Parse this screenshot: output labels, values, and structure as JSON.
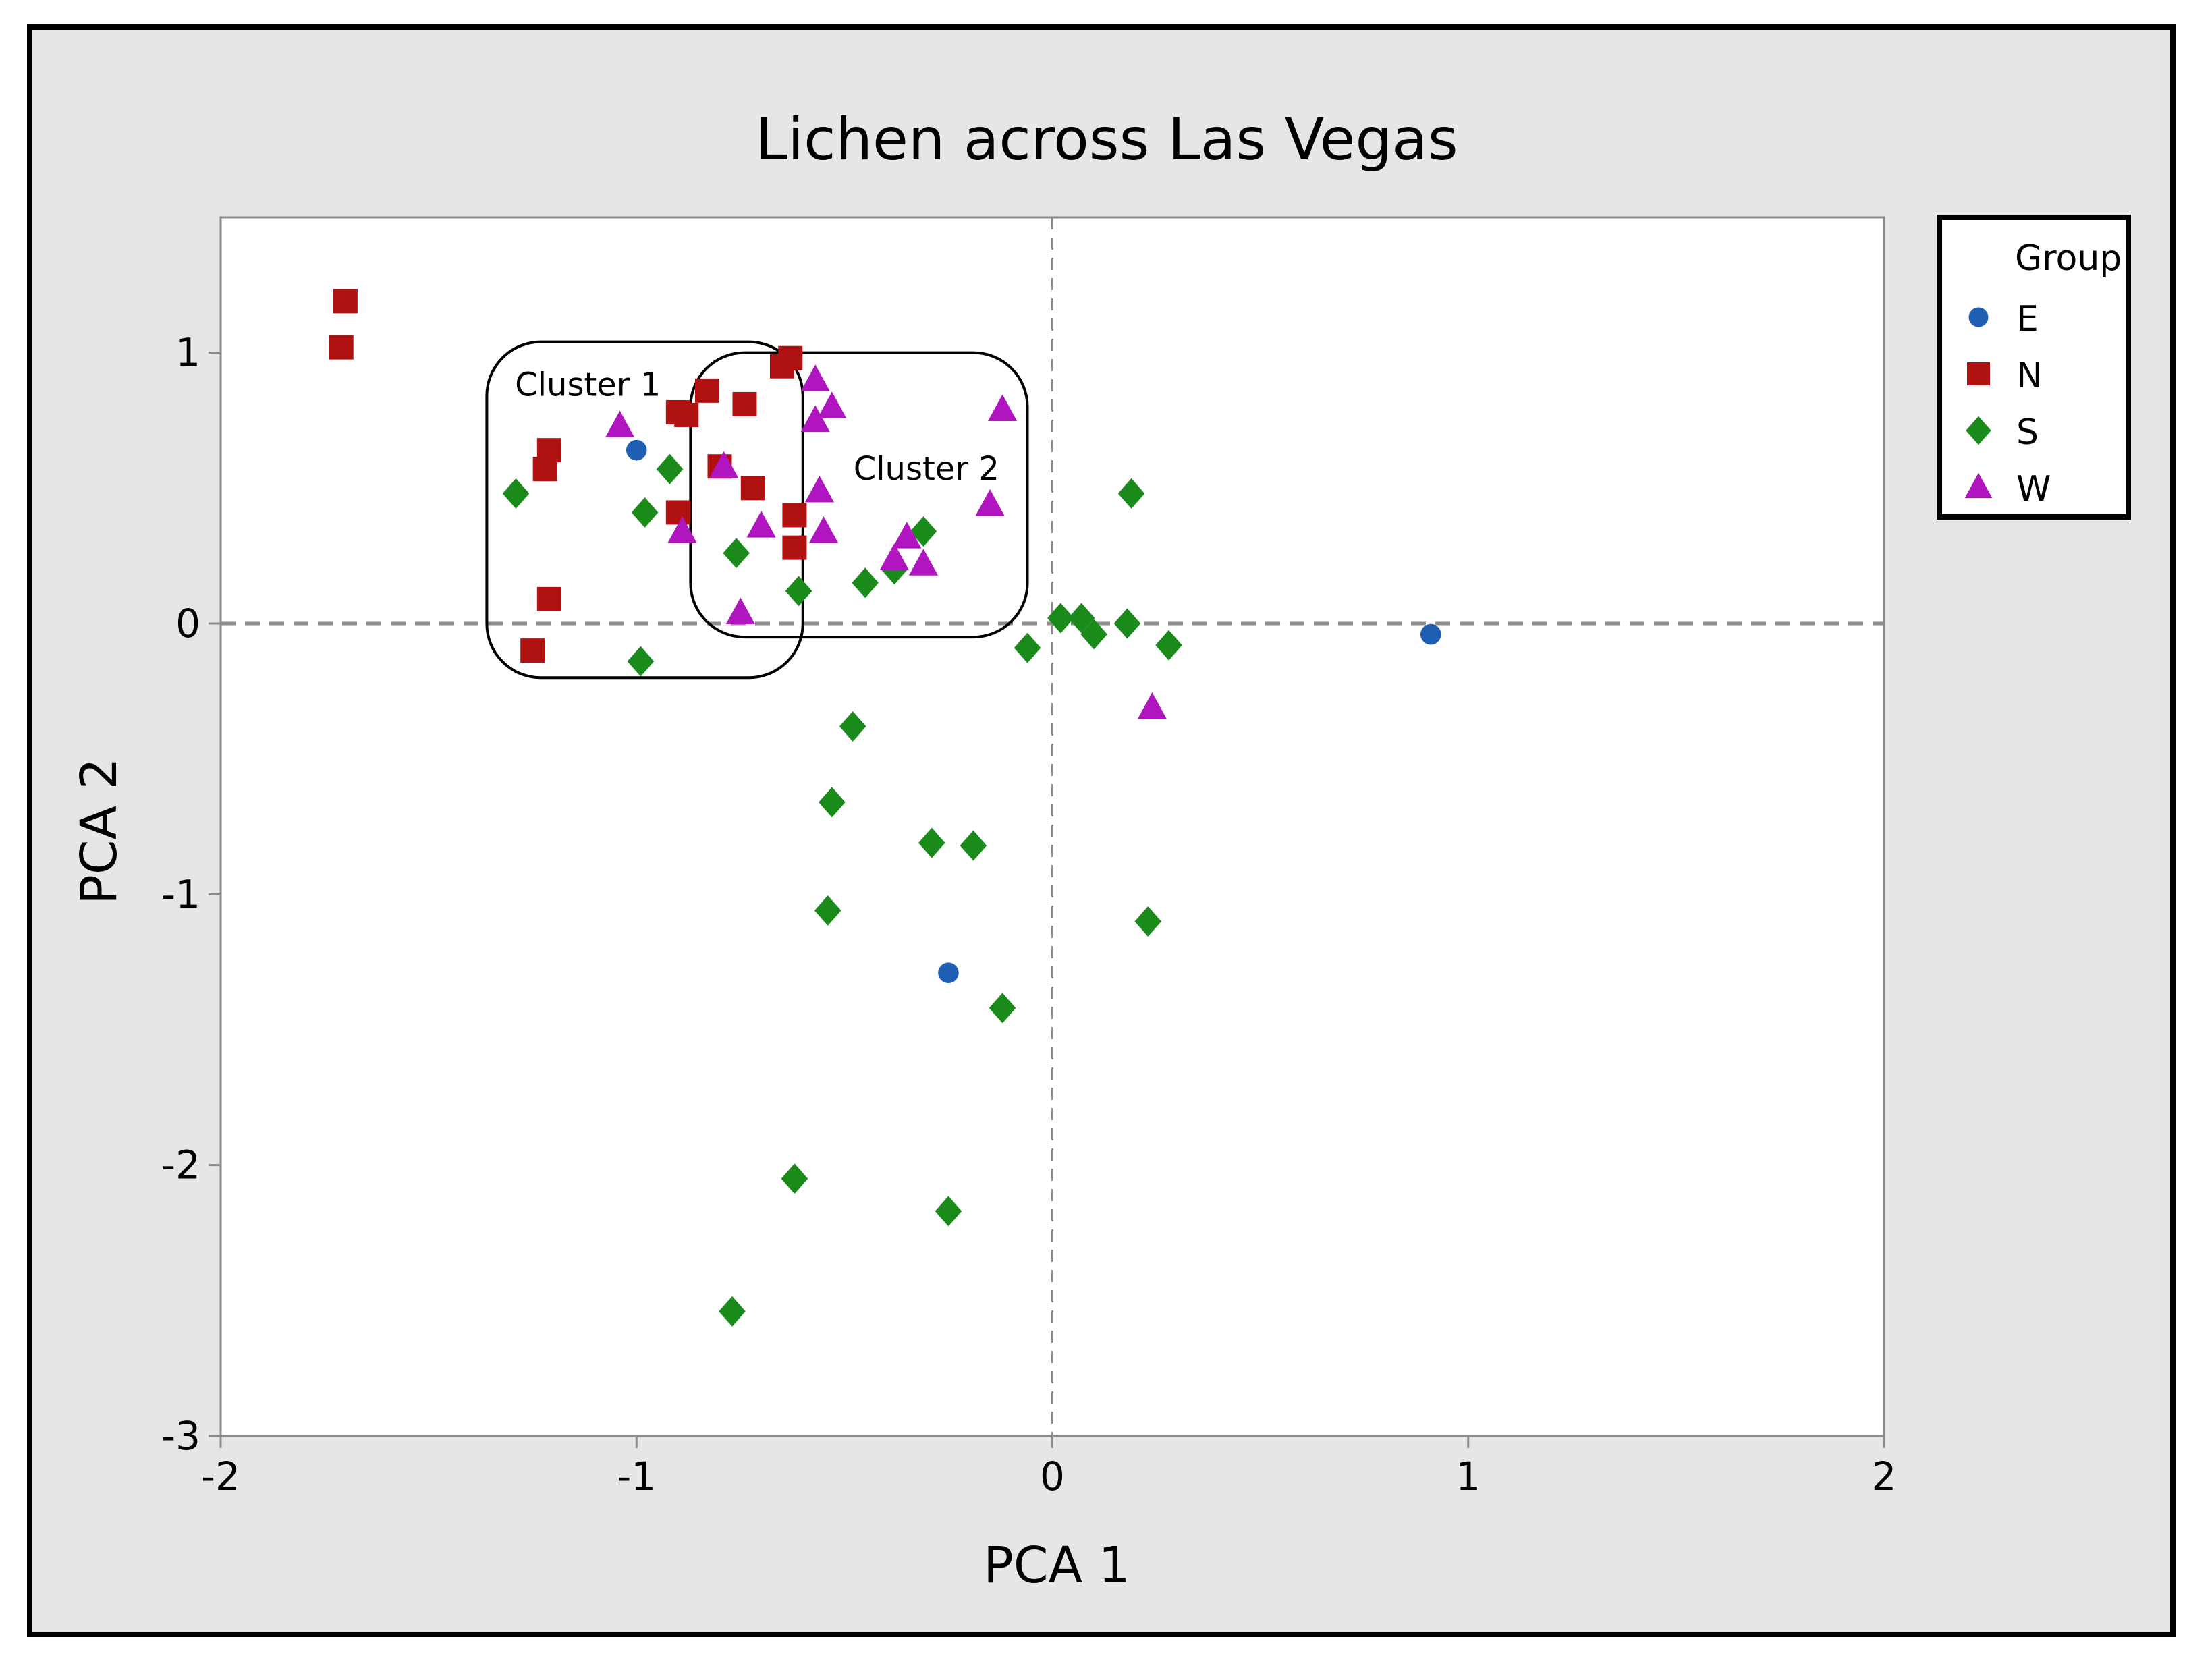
{
  "chart_data": {
    "type": "scatter",
    "title": "Lichen across Las Vegas",
    "xlabel": "PCA 1",
    "ylabel": "PCA 2",
    "xlim": [
      -2,
      2
    ],
    "ylim": [
      -3,
      1.5
    ],
    "x_ticks": [
      -2,
      -1,
      0,
      1,
      2
    ],
    "y_ticks": [
      -3,
      -2,
      -1,
      0,
      1
    ],
    "x_tick_labels": [
      "-2",
      "-1",
      "0",
      "1",
      "2"
    ],
    "y_tick_labels": [
      "-3",
      "-2",
      "-1",
      "0",
      "1"
    ],
    "reference_lines": {
      "x": 0,
      "y": 0,
      "style": "dashed"
    },
    "grid": false,
    "legend": {
      "title": "Group",
      "placement": "right"
    },
    "series": [
      {
        "name": "E",
        "color": "#1f5fb3",
        "marker": "circle",
        "points": [
          [
            -1.0,
            0.64
          ],
          [
            -0.25,
            -1.29
          ],
          [
            0.91,
            -0.04
          ]
        ]
      },
      {
        "name": "N",
        "color": "#b01111",
        "marker": "square",
        "points": [
          [
            -1.7,
            1.19
          ],
          [
            -1.71,
            1.02
          ],
          [
            -1.21,
            0.64
          ],
          [
            -1.22,
            0.57
          ],
          [
            -1.21,
            0.09
          ],
          [
            -1.25,
            -0.1
          ],
          [
            -0.63,
            0.98
          ],
          [
            -0.65,
            0.95
          ],
          [
            -0.83,
            0.86
          ],
          [
            -0.9,
            0.78
          ],
          [
            -0.88,
            0.77
          ],
          [
            -0.74,
            0.81
          ],
          [
            -0.8,
            0.58
          ],
          [
            -0.72,
            0.5
          ],
          [
            -0.9,
            0.41
          ],
          [
            -0.62,
            0.4
          ],
          [
            -0.62,
            0.28
          ]
        ]
      },
      {
        "name": "S",
        "color": "#1a8a1a",
        "marker": "diamond",
        "points": [
          [
            -1.29,
            0.48
          ],
          [
            -0.98,
            0.41
          ],
          [
            -0.92,
            0.57
          ],
          [
            -0.99,
            -0.14
          ],
          [
            -0.76,
            0.26
          ],
          [
            -0.61,
            0.12
          ],
          [
            -0.45,
            0.15
          ],
          [
            -0.31,
            0.34
          ],
          [
            -0.38,
            0.2
          ],
          [
            0.02,
            0.02
          ],
          [
            0.07,
            0.02
          ],
          [
            0.1,
            -0.04
          ],
          [
            0.18,
            0.0
          ],
          [
            0.19,
            0.48
          ],
          [
            0.28,
            -0.08
          ],
          [
            -0.06,
            -0.09
          ],
          [
            -0.48,
            -0.38
          ],
          [
            -0.53,
            -0.66
          ],
          [
            -0.29,
            -0.81
          ],
          [
            -0.19,
            -0.82
          ],
          [
            -0.54,
            -1.06
          ],
          [
            0.23,
            -1.1
          ],
          [
            -0.12,
            -1.42
          ],
          [
            -0.62,
            -2.05
          ],
          [
            -0.25,
            -2.17
          ],
          [
            -0.77,
            -2.54
          ]
        ]
      },
      {
        "name": "W",
        "color": "#b015c0",
        "marker": "triangle",
        "points": [
          [
            -1.04,
            0.73
          ],
          [
            -0.89,
            0.34
          ],
          [
            -0.79,
            0.58
          ],
          [
            -0.7,
            0.36
          ],
          [
            -0.75,
            0.04
          ],
          [
            -0.57,
            0.9
          ],
          [
            -0.57,
            0.75
          ],
          [
            -0.53,
            0.8
          ],
          [
            -0.56,
            0.49
          ],
          [
            -0.55,
            0.34
          ],
          [
            -0.35,
            0.32
          ],
          [
            -0.38,
            0.24
          ],
          [
            -0.31,
            0.22
          ],
          [
            -0.15,
            0.44
          ],
          [
            -0.12,
            0.79
          ],
          [
            0.24,
            -0.31
          ]
        ]
      }
    ],
    "annotations": [
      {
        "label": "Cluster 1",
        "x_range": [
          -1.36,
          -0.6
        ],
        "y_range": [
          -0.2,
          1.04
        ]
      },
      {
        "label": "Cluster 2",
        "x_range": [
          -0.87,
          -0.06
        ],
        "y_range": [
          -0.05,
          1.0
        ]
      }
    ]
  }
}
